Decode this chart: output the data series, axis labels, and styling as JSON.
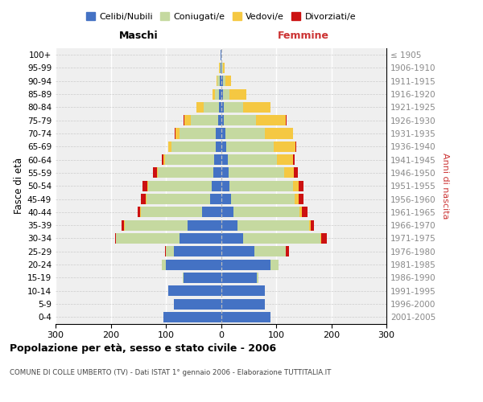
{
  "age_groups": [
    "0-4",
    "5-9",
    "10-14",
    "15-19",
    "20-24",
    "25-29",
    "30-34",
    "35-39",
    "40-44",
    "45-49",
    "50-54",
    "55-59",
    "60-64",
    "65-69",
    "70-74",
    "75-79",
    "80-84",
    "85-89",
    "90-94",
    "95-99",
    "100+"
  ],
  "birth_years": [
    "2001-2005",
    "1996-2000",
    "1991-1995",
    "1986-1990",
    "1981-1985",
    "1976-1980",
    "1971-1975",
    "1966-1970",
    "1961-1965",
    "1956-1960",
    "1951-1955",
    "1946-1950",
    "1941-1945",
    "1936-1940",
    "1931-1935",
    "1926-1930",
    "1921-1925",
    "1916-1920",
    "1911-1915",
    "1906-1910",
    "≤ 1905"
  ],
  "male_celibi": [
    105,
    85,
    95,
    68,
    100,
    85,
    75,
    60,
    35,
    20,
    17,
    14,
    12,
    10,
    10,
    5,
    4,
    3,
    2,
    1,
    1
  ],
  "male_coniugati": [
    0,
    0,
    0,
    2,
    8,
    15,
    115,
    115,
    110,
    115,
    115,
    100,
    90,
    80,
    65,
    50,
    28,
    8,
    4,
    1,
    0
  ],
  "male_vedovi": [
    0,
    0,
    0,
    0,
    0,
    0,
    0,
    1,
    1,
    2,
    2,
    2,
    3,
    5,
    8,
    12,
    12,
    5,
    2,
    1,
    0
  ],
  "male_divorziati": [
    0,
    0,
    0,
    0,
    0,
    2,
    2,
    5,
    5,
    8,
    8,
    8,
    2,
    1,
    1,
    1,
    0,
    0,
    0,
    0,
    0
  ],
  "female_nubili": [
    90,
    80,
    80,
    65,
    90,
    60,
    40,
    30,
    22,
    18,
    16,
    14,
    12,
    10,
    8,
    5,
    5,
    4,
    3,
    1,
    1
  ],
  "female_coniugate": [
    0,
    0,
    0,
    3,
    15,
    58,
    140,
    130,
    120,
    115,
    115,
    100,
    90,
    85,
    72,
    58,
    35,
    12,
    5,
    2,
    0
  ],
  "female_vedove": [
    0,
    0,
    0,
    0,
    0,
    0,
    2,
    3,
    5,
    8,
    10,
    18,
    28,
    40,
    50,
    55,
    50,
    30,
    10,
    3,
    0
  ],
  "female_divorziate": [
    0,
    0,
    0,
    0,
    0,
    5,
    10,
    5,
    10,
    8,
    8,
    8,
    4,
    1,
    1,
    1,
    0,
    0,
    0,
    0,
    0
  ],
  "colors_celibi": "#4472c4",
  "colors_coniugati": "#c5d9a0",
  "colors_vedovi": "#f5c842",
  "colors_divorziati": "#cc1111",
  "xlim": 300,
  "title": "Popolazione per età, sesso e stato civile - 2006",
  "subtitle": "COMUNE DI COLLE UMBERTO (TV) - Dati ISTAT 1° gennaio 2006 - Elaborazione TUTTITALIA.IT",
  "ylabel_left": "Fasce di età",
  "ylabel_right": "Anni di nascita",
  "label_maschi": "Maschi",
  "label_femmine": "Femmine",
  "legend_labels": [
    "Celibi/Nubili",
    "Coniugati/e",
    "Vedovi/e",
    "Divorziati/e"
  ]
}
